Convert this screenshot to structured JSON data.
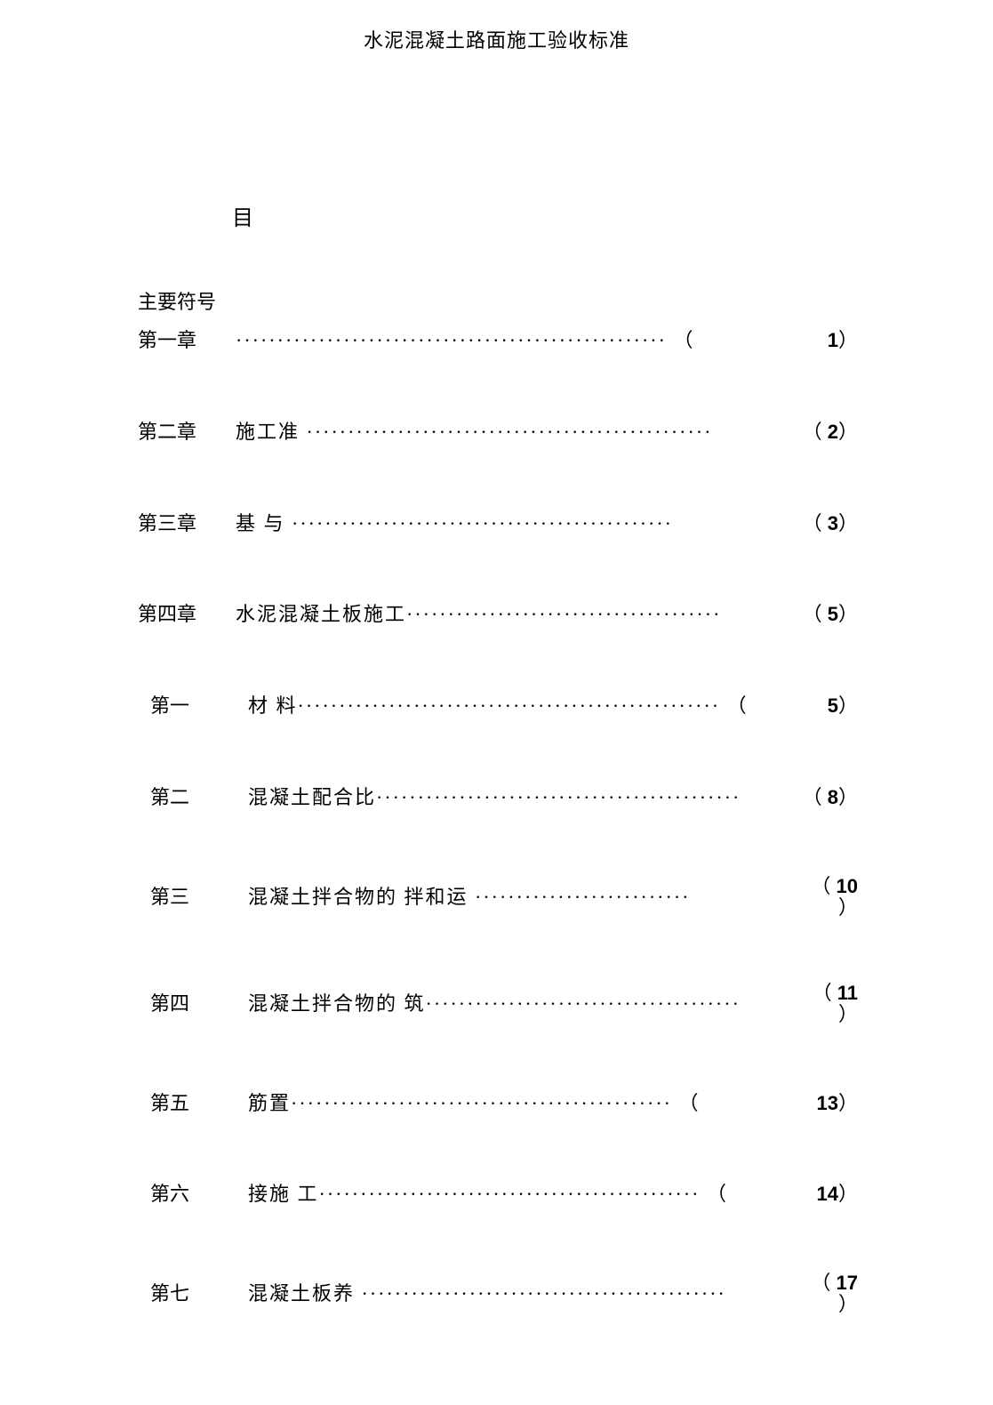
{
  "header": {
    "title": "水泥混凝土路面施工验收标准"
  },
  "toc": {
    "heading": "目",
    "symbols_label": "主要符号",
    "entries": [
      {
        "chapter": "第一章",
        "title": "",
        "dots": "····················································",
        "page": "1",
        "paren_left": "（",
        "paren_right": "）",
        "inline_open": true,
        "sub": false
      },
      {
        "chapter": "第二章",
        "title": "施工准 ",
        "dots": "·················································",
        "page": "2",
        "paren_left": "（",
        "paren_right": "）",
        "inline_open": false,
        "sub": false
      },
      {
        "chapter": "第三章",
        "title": "基 与  ",
        "dots": "··············································",
        "page": "3",
        "paren_left": "（",
        "paren_right": "）",
        "inline_open": false,
        "sub": false
      },
      {
        "chapter": "第四章",
        "title": "水泥混凝土板施工",
        "dots": "······································",
        "page": "5",
        "paren_left": "（",
        "paren_right": "）",
        "inline_open": false,
        "sub": false
      },
      {
        "chapter": "第一",
        "title": "材    料",
        "dots": "···················································",
        "page": "5",
        "paren_left": "（",
        "paren_right": "）",
        "inline_open": true,
        "sub": true
      },
      {
        "chapter": "第二",
        "title": "混凝土配合比",
        "dots": "············································",
        "page": "8",
        "paren_left": "（",
        "paren_right": "）",
        "inline_open": false,
        "sub": true
      },
      {
        "chapter": "第三",
        "title": "混凝土拌合物的 拌和运 ",
        "dots": "··························",
        "page": "10",
        "paren_left": "（",
        "paren_right": "）",
        "inline_open": false,
        "sub": true,
        "stacked": true
      },
      {
        "chapter": "第四",
        "title": "混凝土拌合物的 筑",
        "dots": "······································",
        "page": "11",
        "paren_left": "（",
        "paren_right": "）",
        "inline_open": false,
        "sub": true,
        "stacked": true
      },
      {
        "chapter": "第五",
        "title": "筋置",
        "dots": "··············································",
        "page": "13",
        "paren_left": "（",
        "paren_right": "）",
        "inline_open": true,
        "sub": true
      },
      {
        "chapter": "第六",
        "title": "接施 工",
        "dots": "··············································",
        "page": "14",
        "paren_left": "（",
        "paren_right": "）",
        "inline_open": true,
        "sub": true
      },
      {
        "chapter": "第七",
        "title": "混凝土板养 ",
        "dots": "············································",
        "page": "17",
        "paren_left": "（",
        "paren_right": "）",
        "inline_open": false,
        "sub": true,
        "stacked": true
      }
    ]
  }
}
